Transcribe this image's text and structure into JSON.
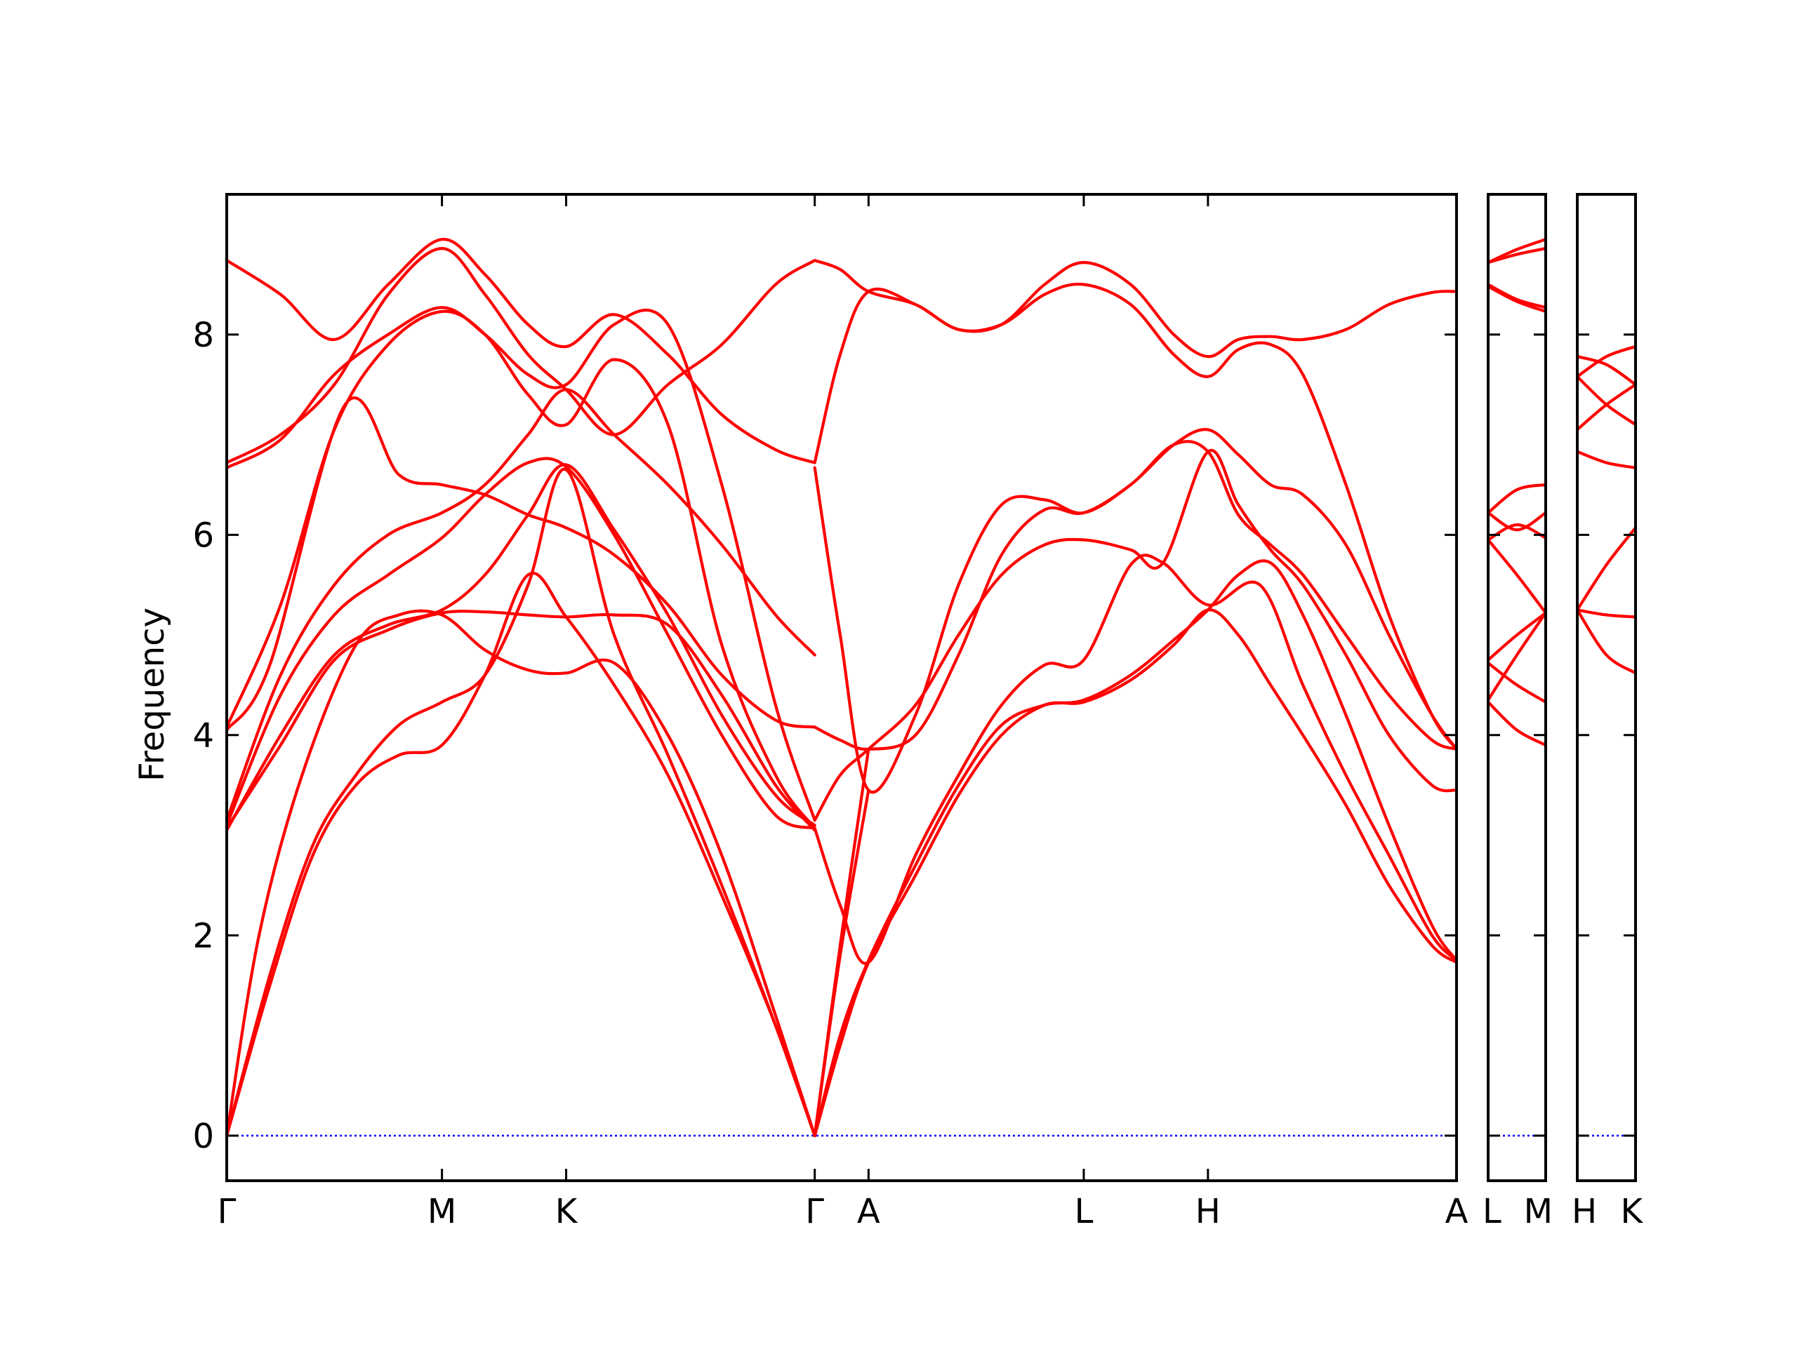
{
  "chart_data": {
    "type": "line",
    "title": "",
    "xlabel": "",
    "ylabel": "Frequency",
    "ylim": [
      -0.45,
      9.4
    ],
    "yticks": [
      0,
      2,
      4,
      6,
      8
    ],
    "ytick_labels": [
      "0",
      "2",
      "4",
      "6",
      "8"
    ],
    "grid": false,
    "legend": "none",
    "line_color": "#ff0000",
    "zero_line_color": "#0000ff",
    "panels": [
      {
        "id": "main",
        "x_labels": [
          "Γ",
          "M",
          "K",
          "Γ",
          "A",
          "L",
          "H",
          "A"
        ],
        "x_label_positions": [
          0,
          1,
          1.577,
          2.732,
          2.982,
          3.982,
          4.559,
          5.714
        ],
        "series": [
          {
            "x": [
              0,
              0.25,
              0.5,
              0.75,
              1,
              1.2,
              1.4,
              1.577,
              1.8,
              2.05,
              2.3,
              2.55,
              2.732
            ],
            "y": [
              8.74,
              8.4,
              7.95,
              8.5,
              8.95,
              8.6,
              8.1,
              7.88,
              8.2,
              7.8,
              7.2,
              6.85,
              6.72
            ]
          },
          {
            "x": [
              0,
              0.25,
              0.5,
              0.75,
              1,
              1.2,
              1.4,
              1.577,
              1.8,
              2.05,
              2.3,
              2.55,
              2.732
            ],
            "y": [
              6.72,
              7.0,
              7.5,
              8.4,
              8.86,
              8.4,
              7.8,
              7.45,
              7.0,
              7.5,
              7.9,
              8.5,
              8.74
            ]
          },
          {
            "x": [
              0,
              0.25,
              0.5,
              0.75,
              1,
              1.2,
              1.4,
              1.577,
              1.8,
              2.05,
              2.3,
              2.55,
              2.732
            ],
            "y": [
              6.67,
              6.95,
              7.6,
              8.0,
              8.27,
              8.0,
              7.6,
              7.5,
              8.1,
              8.1,
              6.5,
              4.3,
              3.15
            ]
          },
          {
            "x": [
              0,
              0.25,
              0.5,
              0.75,
              1,
              1.2,
              1.4,
              1.577,
              1.8,
              2.05,
              2.3,
              2.55,
              2.732
            ],
            "y": [
              4.08,
              5.3,
              7.05,
              7.9,
              8.23,
              8.0,
              7.4,
              7.1,
              7.75,
              7.1,
              4.9,
              3.6,
              3.07
            ]
          },
          {
            "x": [
              0,
              0.2,
              0.55,
              0.8,
              1,
              1.2,
              1.4,
              1.577,
              1.8,
              2.05,
              2.3,
              2.55,
              2.732
            ],
            "y": [
              4.05,
              4.7,
              7.3,
              6.6,
              6.5,
              6.4,
              6.2,
              6.07,
              5.8,
              5.3,
              4.6,
              4.15,
              4.08
            ]
          },
          {
            "x": [
              0,
              0.25,
              0.5,
              0.75,
              1,
              1.2,
              1.4,
              1.577,
              1.8,
              2.05,
              2.3,
              2.55,
              2.732
            ],
            "y": [
              3.15,
              4.6,
              5.5,
              6.0,
              6.22,
              6.5,
              7.0,
              7.45,
              7.0,
              6.5,
              5.9,
              5.2,
              4.8
            ]
          },
          {
            "x": [
              0,
              0.25,
              0.5,
              0.75,
              1,
              1.2,
              1.4,
              1.577,
              1.8,
              2.05,
              2.3,
              2.55,
              2.732
            ],
            "y": [
              3.1,
              4.4,
              5.2,
              5.6,
              5.97,
              6.4,
              6.72,
              6.68,
              6.0,
              5.0,
              4.0,
              3.2,
              3.07
            ]
          },
          {
            "x": [
              0,
              0.25,
              0.5,
              0.75,
              1,
              1.2,
              1.4,
              1.577,
              1.8,
              2.05,
              2.3,
              2.55,
              2.732
            ],
            "y": [
              3.05,
              4.0,
              4.8,
              5.1,
              5.25,
              5.6,
              6.2,
              6.7,
              6.05,
              5.2,
              4.2,
              3.4,
              3.1
            ]
          },
          {
            "x": [
              0,
              0.25,
              0.5,
              0.75,
              1,
              1.2,
              1.4,
              1.577,
              1.8,
              2.05,
              2.3,
              2.55,
              2.732
            ],
            "y": [
              3.07,
              3.9,
              4.75,
              5.05,
              5.22,
              5.23,
              5.2,
              5.18,
              5.2,
              5.1,
              4.4,
              3.5,
              3.05
            ]
          },
          {
            "x": [
              0,
              0.15,
              0.35,
              0.6,
              0.8,
              1,
              1.2,
              1.4,
              1.577,
              1.8,
              2.05,
              2.3,
              2.55,
              2.732
            ],
            "y": [
              0,
              2.0,
              3.6,
              4.9,
              5.2,
              5.2,
              4.85,
              4.65,
              4.62,
              4.72,
              4.0,
              2.8,
              1.2,
              0
            ]
          },
          {
            "x": [
              0,
              0.2,
              0.4,
              0.6,
              0.8,
              1,
              1.2,
              1.4,
              1.577,
              1.8,
              2.05,
              2.3,
              2.55,
              2.732
            ],
            "y": [
              0,
              1.6,
              2.9,
              3.6,
              4.1,
              4.33,
              4.6,
              5.5,
              6.65,
              5.0,
              3.8,
              2.5,
              1.1,
              0
            ]
          },
          {
            "x": [
              0,
              0.2,
              0.4,
              0.6,
              0.8,
              1,
              1.2,
              1.4,
              1.577,
              1.8,
              2.05,
              2.3,
              2.55,
              2.732
            ],
            "y": [
              0,
              1.5,
              2.8,
              3.5,
              3.8,
              3.9,
              4.6,
              5.6,
              5.18,
              4.5,
              3.6,
              2.4,
              1.1,
              0
            ]
          },
          {
            "x": [
              2.732,
              2.85,
              2.982,
              3.2,
              3.4,
              3.6,
              3.8,
              3.982,
              4.2,
              4.4,
              4.559,
              4.7,
              4.85,
              5.0,
              5.2,
              5.4,
              5.6,
              5.714
            ],
            "y": [
              8.74,
              8.65,
              8.43,
              8.3,
              8.05,
              8.1,
              8.5,
              8.72,
              8.5,
              8.0,
              7.78,
              7.95,
              7.98,
              7.95,
              8.05,
              8.3,
              8.42,
              8.43
            ]
          },
          {
            "x": [
              2.732,
              2.85,
              2.982,
              3.2,
              3.4,
              3.6,
              3.8,
              3.982,
              4.2,
              4.4,
              4.559,
              4.7,
              4.85,
              5.0,
              5.2,
              5.4,
              5.6,
              5.714
            ],
            "y": [
              6.72,
              7.8,
              8.43,
              8.3,
              8.05,
              8.1,
              8.4,
              8.5,
              8.3,
              7.8,
              7.58,
              7.85,
              7.9,
              7.6,
              6.5,
              5.2,
              4.2,
              3.86
            ]
          },
          {
            "x": [
              2.732,
              2.85,
              2.982,
              3.2,
              3.4,
              3.6,
              3.8,
              3.982,
              4.2,
              4.4,
              4.559,
              4.7,
              4.85,
              5.0,
              5.2,
              5.4,
              5.6,
              5.714
            ],
            "y": [
              6.67,
              5.0,
              3.45,
              4.2,
              5.5,
              6.3,
              6.35,
              6.22,
              6.5,
              6.9,
              7.05,
              6.8,
              6.5,
              6.4,
              5.9,
              5.0,
              4.2,
              3.86
            ]
          },
          {
            "x": [
              2.732,
              2.85,
              2.982,
              3.2,
              3.4,
              3.6,
              3.8,
              3.982,
              4.2,
              4.4,
              4.559,
              4.7,
              4.85,
              5.0,
              5.2,
              5.4,
              5.6,
              5.714
            ],
            "y": [
              4.08,
              3.95,
              3.86,
              4.0,
              4.8,
              5.8,
              6.25,
              6.22,
              6.5,
              6.9,
              6.83,
              6.2,
              5.9,
              5.6,
              5.0,
              4.4,
              3.95,
              3.86
            ]
          },
          {
            "x": [
              2.732,
              2.85,
              2.982,
              3.2,
              3.4,
              3.6,
              3.8,
              3.982,
              4.2,
              4.35,
              4.559,
              4.7,
              4.85,
              5.0,
              5.2,
              5.4,
              5.6,
              5.714
            ],
            "y": [
              3.15,
              3.6,
              3.86,
              4.3,
              5.0,
              5.6,
              5.9,
              5.95,
              5.85,
              5.72,
              6.83,
              6.3,
              5.85,
              5.5,
              4.8,
              4.0,
              3.5,
              3.45
            ]
          },
          {
            "x": [
              2.732,
              2.85,
              2.982,
              3.2,
              3.4,
              3.6,
              3.8,
              3.982,
              4.2,
              4.35,
              4.559,
              4.8,
              5.0,
              5.2,
              5.4,
              5.6,
              5.714
            ],
            "y": [
              3.07,
              2.3,
              1.73,
              2.8,
              3.6,
              4.3,
              4.7,
              4.75,
              5.7,
              5.72,
              5.3,
              5.5,
              4.5,
              3.6,
              2.8,
              2.0,
              1.75
            ]
          },
          {
            "x": [
              2.732,
              2.85,
              2.982,
              3.2,
              3.4,
              3.6,
              3.8,
              3.982,
              4.2,
              4.4,
              4.559,
              4.7,
              4.85,
              5.0,
              5.2,
              5.4,
              5.6,
              5.714
            ],
            "y": [
              0,
              0.9,
              1.73,
              2.6,
              3.4,
              4.0,
              4.3,
              4.33,
              4.55,
              4.9,
              5.25,
              5.0,
              4.5,
              4.0,
              3.3,
              2.5,
              1.9,
              1.73
            ]
          },
          {
            "x": [
              2.732,
              2.85,
              2.982,
              3.2,
              3.4,
              3.6,
              3.8,
              3.982,
              4.2,
              4.4,
              4.559,
              4.7,
              4.85,
              5.0,
              5.2,
              5.4,
              5.6,
              5.714
            ],
            "y": [
              0,
              1.0,
              1.75,
              2.7,
              3.5,
              4.1,
              4.3,
              4.35,
              4.6,
              4.95,
              5.25,
              5.6,
              5.72,
              5.2,
              4.2,
              3.1,
              2.1,
              1.75
            ]
          },
          {
            "x": [
              2.732,
              2.85,
              2.982
            ],
            "y": [
              0,
              1.9,
              3.86
            ]
          },
          {
            "x": [
              2.732,
              2.85,
              2.982
            ],
            "y": [
              0,
              1.8,
              3.45
            ]
          }
        ]
      },
      {
        "id": "LM",
        "x_labels": [
          "L",
          "M"
        ],
        "x_label_positions": [
          0,
          1
        ],
        "series": [
          {
            "x": [
              0,
              0.5,
              1
            ],
            "y": [
              8.72,
              8.85,
              8.95
            ]
          },
          {
            "x": [
              0,
              0.5,
              1
            ],
            "y": [
              8.72,
              8.8,
              8.86
            ]
          },
          {
            "x": [
              0,
              0.5,
              1
            ],
            "y": [
              8.5,
              8.35,
              8.27
            ]
          },
          {
            "x": [
              0,
              0.5,
              1
            ],
            "y": [
              8.48,
              8.33,
              8.23
            ]
          },
          {
            "x": [
              0,
              0.5,
              1
            ],
            "y": [
              6.22,
              6.45,
              6.5
            ]
          },
          {
            "x": [
              0,
              0.5,
              1
            ],
            "y": [
              6.22,
              6.05,
              6.22
            ]
          },
          {
            "x": [
              0,
              0.5,
              1
            ],
            "y": [
              5.95,
              6.1,
              5.97
            ]
          },
          {
            "x": [
              0,
              0.5,
              1
            ],
            "y": [
              5.95,
              5.6,
              5.22
            ]
          },
          {
            "x": [
              0,
              0.5,
              1
            ],
            "y": [
              4.75,
              5.0,
              5.22
            ]
          },
          {
            "x": [
              0,
              0.5,
              1
            ],
            "y": [
              4.72,
              4.5,
              4.33
            ]
          },
          {
            "x": [
              0,
              0.5,
              1
            ],
            "y": [
              4.35,
              4.8,
              5.22
            ]
          },
          {
            "x": [
              0,
              0.5,
              1
            ],
            "y": [
              4.33,
              4.05,
              3.9
            ]
          }
        ]
      },
      {
        "id": "HK",
        "x_labels": [
          "H",
          "K"
        ],
        "x_label_positions": [
          0,
          1
        ],
        "series": [
          {
            "x": [
              0,
              0.5,
              1
            ],
            "y": [
              7.78,
              7.7,
              7.5
            ]
          },
          {
            "x": [
              0,
              0.5,
              1
            ],
            "y": [
              7.58,
              7.78,
              7.88
            ]
          },
          {
            "x": [
              0,
              0.5,
              1
            ],
            "y": [
              7.58,
              7.3,
              7.1
            ]
          },
          {
            "x": [
              0,
              0.5,
              1
            ],
            "y": [
              7.05,
              7.3,
              7.5
            ]
          },
          {
            "x": [
              0,
              0.5,
              1
            ],
            "y": [
              6.83,
              6.72,
              6.67
            ]
          },
          {
            "x": [
              0,
              0.5,
              1
            ],
            "y": [
              5.25,
              5.7,
              6.07
            ]
          },
          {
            "x": [
              0,
              0.5,
              1
            ],
            "y": [
              5.25,
              5.2,
              5.18
            ]
          },
          {
            "x": [
              0,
              0.5,
              1
            ],
            "y": [
              5.25,
              4.8,
              4.62
            ]
          }
        ]
      }
    ]
  }
}
